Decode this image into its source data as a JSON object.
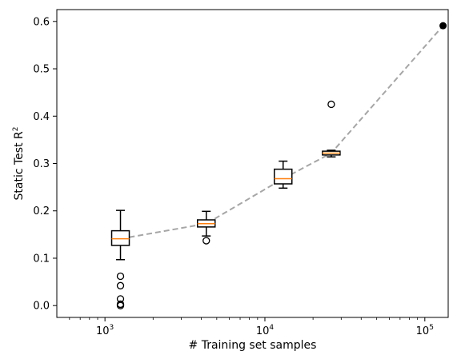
{
  "chart_data": {
    "type": "box",
    "xlabel": "# Training set samples",
    "ylabel_base": "Static Test R",
    "ylabel_sup": "2",
    "x_scale": "log",
    "xlim": [
      500,
      140000
    ],
    "ylim": [
      -0.025,
      0.625
    ],
    "x_ticks": [
      {
        "value": 1000,
        "base": "10",
        "exp": "3"
      },
      {
        "value": 10000,
        "base": "10",
        "exp": "4"
      },
      {
        "value": 100000,
        "base": "10",
        "exp": "5"
      }
    ],
    "y_ticks": [
      {
        "value": 0.0,
        "label": "0.0"
      },
      {
        "value": 0.1,
        "label": "0.1"
      },
      {
        "value": 0.2,
        "label": "0.2"
      },
      {
        "value": 0.3,
        "label": "0.3"
      },
      {
        "value": 0.4,
        "label": "0.4"
      },
      {
        "value": 0.5,
        "label": "0.5"
      },
      {
        "value": 0.6,
        "label": "0.6"
      }
    ],
    "grid": false,
    "boxes": [
      {
        "x": 1250,
        "whislo": 0.097,
        "q1": 0.127,
        "med": 0.141,
        "q3": 0.158,
        "whishi": 0.201,
        "fliers": [
          0.0,
          0.003,
          0.014,
          0.042,
          0.062
        ]
      },
      {
        "x": 4300,
        "whislo": 0.147,
        "q1": 0.166,
        "med": 0.173,
        "q3": 0.181,
        "whishi": 0.199,
        "fliers": [
          0.137
        ]
      },
      {
        "x": 13000,
        "whislo": 0.248,
        "q1": 0.257,
        "med": 0.268,
        "q3": 0.288,
        "whishi": 0.305,
        "fliers": []
      },
      {
        "x": 26000,
        "whislo": 0.314,
        "q1": 0.318,
        "med": 0.322,
        "q3": 0.326,
        "whishi": 0.328,
        "fliers": [
          0.425
        ]
      }
    ],
    "final_point": {
      "x": 130000,
      "y": 0.591
    },
    "trend_line": {
      "style": "dashed",
      "color": "#a6a6a6",
      "points": [
        {
          "x": 1250,
          "y": 0.141
        },
        {
          "x": 4300,
          "y": 0.173
        },
        {
          "x": 13000,
          "y": 0.268
        },
        {
          "x": 26000,
          "y": 0.322
        },
        {
          "x": 130000,
          "y": 0.591
        }
      ]
    },
    "colors": {
      "median": "#ff7f0e",
      "box": "#000000",
      "trend": "#a6a6a6",
      "point": "#000000"
    }
  }
}
